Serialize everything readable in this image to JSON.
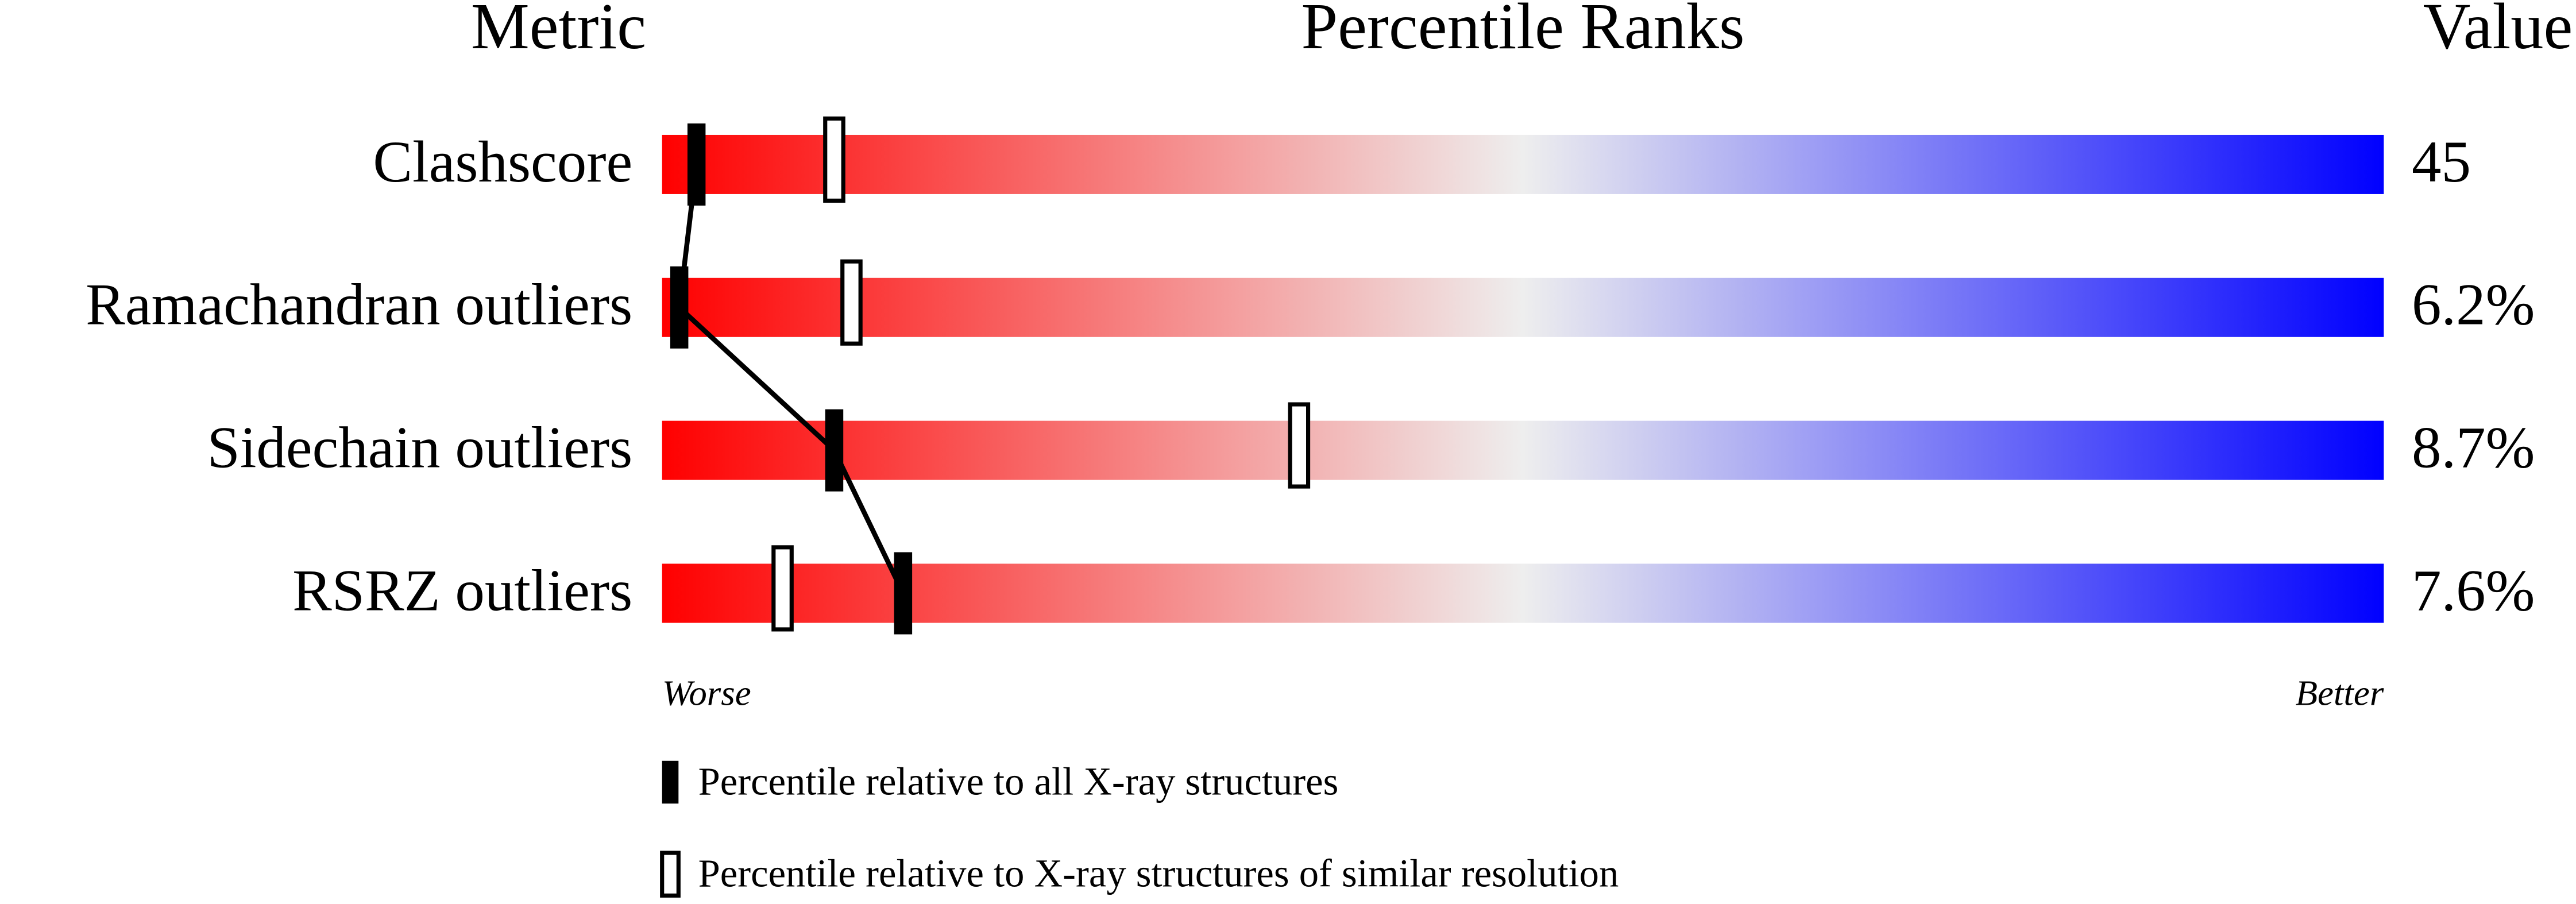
{
  "chart_data": {
    "type": "percentile",
    "headers": {
      "metric": "Metric",
      "ranks": "Percentile Ranks",
      "value": "Value"
    },
    "categories": [
      "Clashscore",
      "Ramachandran outliers",
      "Sidechain outliers",
      "RSRZ outliers"
    ],
    "metric_values": [
      "45",
      "6.2%",
      "8.7%",
      "7.6%"
    ],
    "series": [
      {
        "name": "Percentile relative to all X-ray structures",
        "color": "#000000",
        "filled": true,
        "values": [
          2,
          1,
          10,
          14
        ]
      },
      {
        "name": "Percentile relative to X-ray structures of similar resolution",
        "color": "#000000",
        "filled": false,
        "values": [
          10,
          11,
          37,
          7
        ]
      }
    ],
    "xlim": [
      0,
      100
    ],
    "axis_labels": {
      "low": "Worse",
      "high": "Better"
    },
    "gradient": [
      "#ff0000",
      "#eeeeee",
      "#0000ff"
    ]
  }
}
